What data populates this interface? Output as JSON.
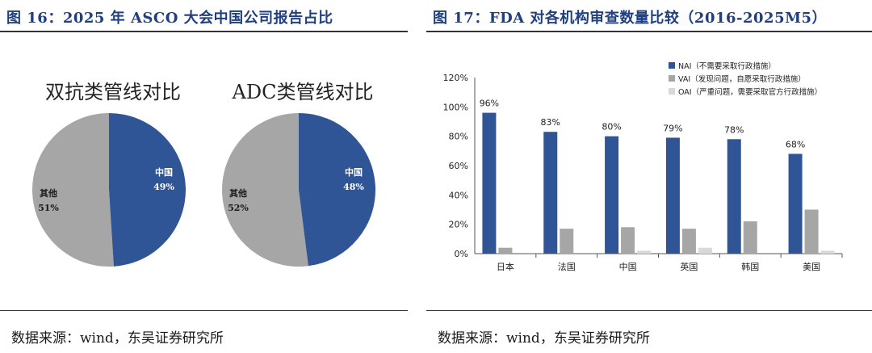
{
  "left": {
    "title": "图 16：2025 年 ASCO 大会中国公司报告占比",
    "source": "数据来源：wind，东吴证券研究所"
  },
  "right": {
    "title": "图 17：FDA 对各机构审查数量比较（2016-2025M5）",
    "source": "数据来源：wind，东吴证券研究所"
  },
  "colors": {
    "china": "#2f5597",
    "other": "#a6a6a6",
    "nai": "#2f5597",
    "vai": "#a6a6a6",
    "oai": "#d9d9d9",
    "title": "#1f3f7f"
  },
  "chart_data": [
    {
      "type": "pie",
      "title": "双抗类管线对比",
      "slices": [
        {
          "label": "中国",
          "percent_label": "49%",
          "value": 49
        },
        {
          "label": "其他",
          "percent_label": "51%",
          "value": 51
        }
      ]
    },
    {
      "type": "pie",
      "title": "ADC类管线对比",
      "slices": [
        {
          "label": "中国",
          "percent_label": "48%",
          "value": 48
        },
        {
          "label": "其他",
          "percent_label": "52%",
          "value": 52
        }
      ]
    },
    {
      "type": "bar",
      "categories": [
        "日本",
        "法国",
        "中国",
        "英国",
        "韩国",
        "美国"
      ],
      "ylim": [
        0,
        120
      ],
      "yticks": [
        "0%",
        "20%",
        "40%",
        "60%",
        "80%",
        "100%",
        "120%"
      ],
      "legend_position": "top-right",
      "series": [
        {
          "name": "NAI（不需要采取行政措施）",
          "values": [
            96,
            83,
            80,
            79,
            78,
            68
          ],
          "data_labels": [
            "96%",
            "83%",
            "80%",
            "79%",
            "78%",
            "68%"
          ]
        },
        {
          "name": "VAI（发现问题，自愿采取行政措施）",
          "values": [
            4,
            17,
            18,
            17,
            22,
            30
          ]
        },
        {
          "name": "OAI（严重问题，需要采取官方行政措施）",
          "values": [
            0,
            0,
            2,
            4,
            0,
            2
          ]
        }
      ]
    }
  ]
}
